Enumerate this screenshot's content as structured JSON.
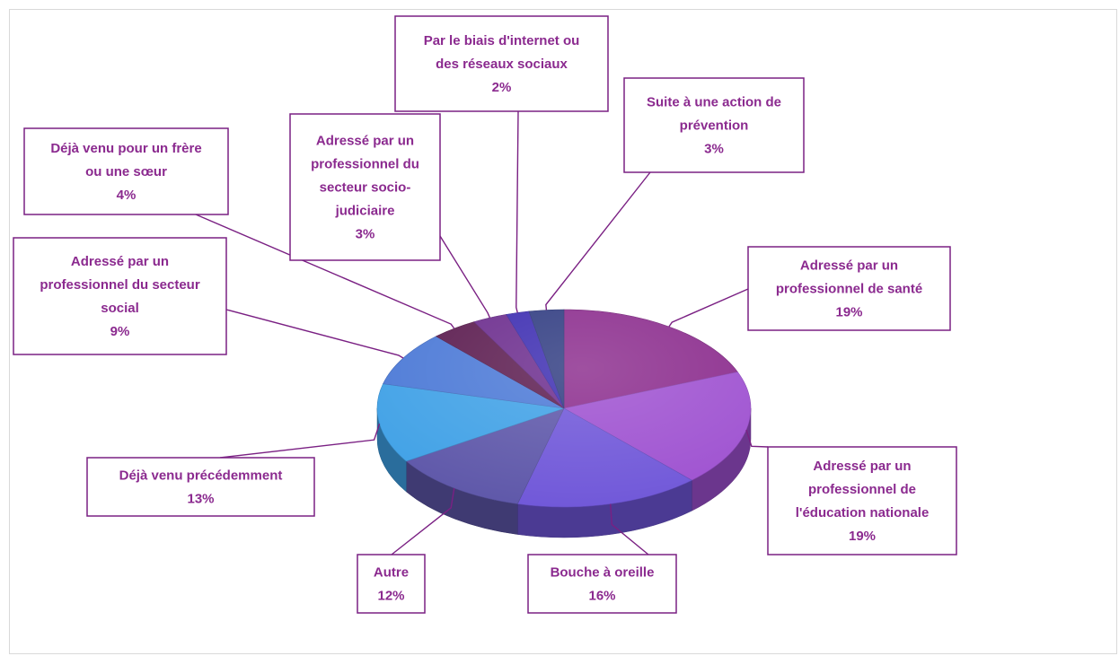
{
  "chart_data": {
    "type": "pie",
    "title": "",
    "slices": [
      {
        "label_lines": [
          "Adressé par un",
          "professionnel de santé"
        ],
        "value": 19,
        "display": "19%",
        "color": "#8a2a8c"
      },
      {
        "label_lines": [
          "Adressé par un",
          "professionnel de",
          "l'éducation nationale"
        ],
        "value": 19,
        "display": "19%",
        "color": "#9d4fd0"
      },
      {
        "label_lines": [
          "Bouche à oreille"
        ],
        "value": 16,
        "display": "16%",
        "color": "#6e55d8"
      },
      {
        "label_lines": [
          "Autre"
        ],
        "value": 12,
        "display": "12%",
        "color": "#5c55a8"
      },
      {
        "label_lines": [
          "Déjà venu précédemment"
        ],
        "value": 13,
        "display": "13%",
        "color": "#3ea0e6"
      },
      {
        "label_lines": [
          "Adressé par un",
          "professionnel du secteur",
          "social"
        ],
        "value": 9,
        "display": "9%",
        "color": "#4a78d6"
      },
      {
        "label_lines": [
          "Déjà venu pour un frère",
          "ou une sœur"
        ],
        "value": 4,
        "display": "4%",
        "color": "#5a1a4e"
      },
      {
        "label_lines": [
          "Adressé par un",
          "professionnel du",
          "secteur socio-",
          "judiciaire"
        ],
        "value": 3,
        "display": "3%",
        "color": "#6a2a8c"
      },
      {
        "label_lines": [
          "Par le biais d'internet ou",
          "des réseaux sociaux"
        ],
        "value": 2,
        "display": "2%",
        "color": "#3a2ab0"
      },
      {
        "label_lines": [
          "Suite à une action de",
          "prévention"
        ],
        "value": 3,
        "display": "3%",
        "color": "#2e3a80"
      }
    ]
  }
}
